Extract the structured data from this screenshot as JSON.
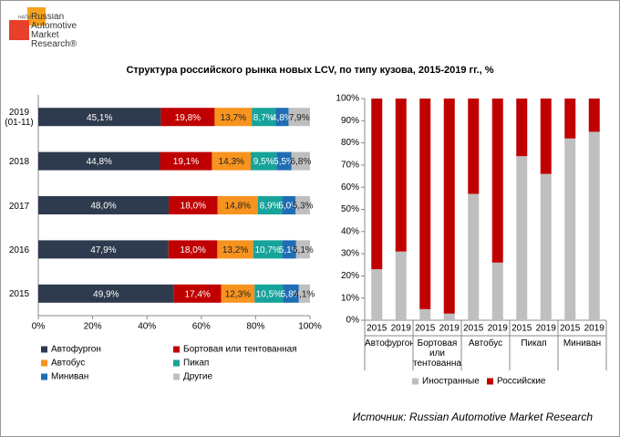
{
  "logo": {
    "badge": "НАПИ",
    "name": "Russian Automotive Market Research®"
  },
  "title": "Структура российского рынка новых LCV, по типу кузова, 2015-2019 гг., %",
  "source": "Источник: Russian Automotive Market Research",
  "chart_data": [
    {
      "type": "bar",
      "orientation": "horizontal",
      "stacked": true,
      "grid": false,
      "categories": [
        "2019 (01-11)",
        "2018",
        "2017",
        "2016",
        "2015"
      ],
      "series": [
        {
          "name": "Автофургон",
          "color": "#2e3b4e",
          "values": [
            45.1,
            44.8,
            48.0,
            47.9,
            49.9
          ],
          "value_labels": [
            "45,1%",
            "44,8%",
            "48,0%",
            "47,9%",
            "49,9%"
          ]
        },
        {
          "name": "Бортовая или тентованная",
          "color": "#c00000",
          "values": [
            19.8,
            19.1,
            18.0,
            18.0,
            17.4
          ],
          "value_labels": [
            "19,8%",
            "19,1%",
            "18,0%",
            "18,0%",
            "17,4%"
          ]
        },
        {
          "name": "Автобус",
          "color": "#f7931e",
          "values": [
            13.7,
            14.3,
            14.8,
            13.2,
            12.3
          ],
          "value_labels": [
            "13,7%",
            "14,3%",
            "14,8%",
            "13,2%",
            "12,3%"
          ]
        },
        {
          "name": "Пикап",
          "color": "#16a39a",
          "values": [
            8.7,
            9.5,
            8.9,
            10.7,
            10.5
          ],
          "value_labels": [
            "8,7%",
            "9,5%",
            "8,9%",
            "10,7%",
            "10,5%"
          ]
        },
        {
          "name": "Миниван",
          "color": "#1f6db4",
          "values": [
            4.8,
            5.5,
            5.0,
            5.1,
            5.8
          ],
          "value_labels": [
            "4,8%",
            "5,5%",
            "5,0%",
            "5,1%",
            "5,8%"
          ]
        },
        {
          "name": "Другие",
          "color": "#bfbfbf",
          "values": [
            7.9,
            6.8,
            5.3,
            5.1,
            4.1
          ],
          "value_labels": [
            "7,9%",
            "6,8%",
            "5,3%",
            "5,1%",
            "4,1%"
          ]
        }
      ],
      "xlim": [
        0,
        100
      ],
      "xticks": [
        {
          "value": 0,
          "label": "0%"
        },
        {
          "value": 20,
          "label": "20%"
        },
        {
          "value": 40,
          "label": "40%"
        },
        {
          "value": 60,
          "label": "60%"
        },
        {
          "value": 80,
          "label": "80%"
        },
        {
          "value": 100,
          "label": "100%"
        }
      ]
    },
    {
      "type": "bar",
      "orientation": "vertical",
      "stacked": true,
      "grid": false,
      "categories": [
        "2015",
        "2019",
        "2015",
        "2019",
        "2015",
        "2019",
        "2015",
        "2019",
        "2015",
        "2019"
      ],
      "groups": [
        "Автофургон",
        "Бортовая или тентованная",
        "Автобус",
        "Пикап",
        "Миниван"
      ],
      "series": [
        {
          "name": "Иностранные",
          "color": "#bfbfbf",
          "values": [
            23,
            31,
            5,
            3,
            57,
            26,
            74,
            66,
            82,
            85
          ]
        },
        {
          "name": "Российские",
          "color": "#c00000",
          "values": [
            77,
            69,
            95,
            97,
            43,
            74,
            26,
            34,
            18,
            15
          ]
        }
      ],
      "ylim": [
        0,
        100
      ],
      "yticks": [
        {
          "value": 0,
          "label": "0%"
        },
        {
          "value": 10,
          "label": "10%"
        },
        {
          "value": 20,
          "label": "20%"
        },
        {
          "value": 30,
          "label": "30%"
        },
        {
          "value": 40,
          "label": "40%"
        },
        {
          "value": 50,
          "label": "50%"
        },
        {
          "value": 60,
          "label": "60%"
        },
        {
          "value": 70,
          "label": "70%"
        },
        {
          "value": 80,
          "label": "80%"
        },
        {
          "value": 90,
          "label": "90%"
        },
        {
          "value": 100,
          "label": "100%"
        }
      ]
    }
  ]
}
